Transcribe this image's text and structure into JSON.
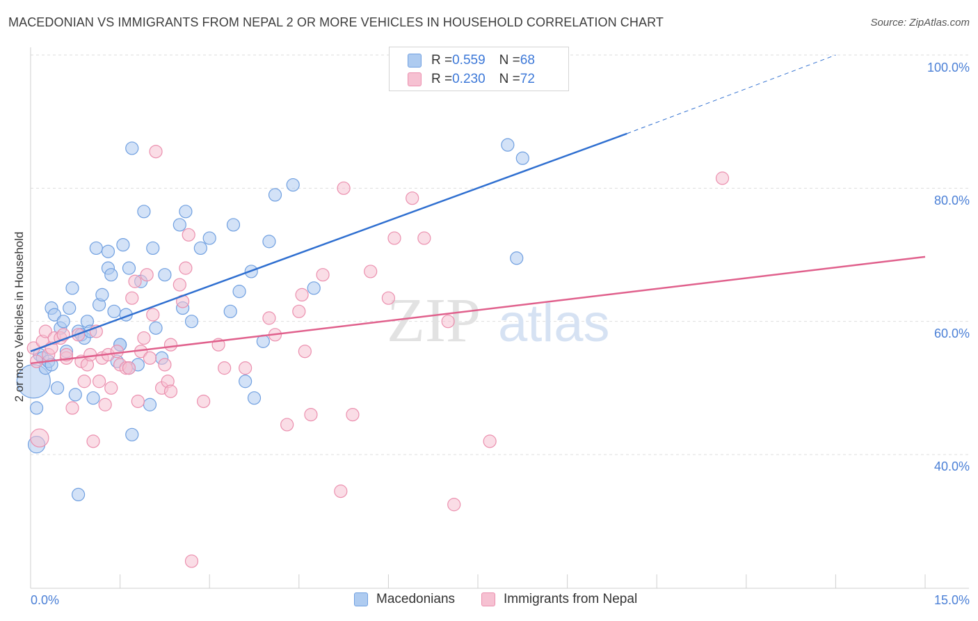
{
  "title": "MACEDONIAN VS IMMIGRANTS FROM NEPAL 2 OR MORE VEHICLES IN HOUSEHOLD CORRELATION CHART",
  "source": "Source: ZipAtlas.com",
  "watermark": {
    "zip": "ZIP",
    "atlas": "atlas"
  },
  "colors": {
    "blue_fill": "#aecbf0",
    "blue_stroke": "#6f9fe0",
    "blue_line": "#2f6fd0",
    "pink_fill": "#f6c1d2",
    "pink_stroke": "#eb8fae",
    "pink_line": "#e0608c",
    "axis_text": "#4a7fd6",
    "grid": "#dddddd"
  },
  "legend_top": [
    {
      "r_label": "R = ",
      "r_value": "0.559",
      "n_label": "N = ",
      "n_value": "68"
    },
    {
      "r_label": "R = ",
      "r_value": "0.230",
      "n_label": "N = ",
      "n_value": "72"
    }
  ],
  "chart_data": {
    "type": "scatter",
    "title": "MACEDONIAN VS IMMIGRANTS FROM NEPAL 2 OR MORE VEHICLES IN HOUSEHOLD CORRELATION CHART",
    "xlabel": "",
    "ylabel": "2 or more Vehicles in Household",
    "x_unit": "%",
    "xlim": [
      0,
      15
    ],
    "ylim": [
      20,
      102
    ],
    "x_tick_labels": [
      "0.0%",
      "15.0%"
    ],
    "y_ticks": [
      40,
      60,
      80,
      100
    ],
    "y_tick_labels": [
      "40.0%",
      "60.0%",
      "80.0%",
      "100.0%"
    ],
    "grid": true,
    "legend_position": "bottom",
    "series": [
      {
        "name": "Macedonians",
        "color": "#6f9fe0",
        "points": [
          [
            0.05,
            51.0
          ],
          [
            0.1,
            47.0
          ],
          [
            0.1,
            41.5
          ],
          [
            0.15,
            55.0
          ],
          [
            0.2,
            54.5
          ],
          [
            0.25,
            53.0
          ],
          [
            0.3,
            54.0
          ],
          [
            0.35,
            62.0
          ],
          [
            0.4,
            61.0
          ],
          [
            0.45,
            50.0
          ],
          [
            0.5,
            59.0
          ],
          [
            0.55,
            60.0
          ],
          [
            0.6,
            55.5
          ],
          [
            0.65,
            62.0
          ],
          [
            0.7,
            65.0
          ],
          [
            0.75,
            49.0
          ],
          [
            0.8,
            58.5
          ],
          [
            0.85,
            58.0
          ],
          [
            0.9,
            57.5
          ],
          [
            0.95,
            60.0
          ],
          [
            1.0,
            58.5
          ],
          [
            1.05,
            48.5
          ],
          [
            1.1,
            71.0
          ],
          [
            1.15,
            62.5
          ],
          [
            1.2,
            64.0
          ],
          [
            1.3,
            68.0
          ],
          [
            1.3,
            70.5
          ],
          [
            1.35,
            67.0
          ],
          [
            1.4,
            61.5
          ],
          [
            1.45,
            54.0
          ],
          [
            1.5,
            56.5
          ],
          [
            1.55,
            71.5
          ],
          [
            1.6,
            61.0
          ],
          [
            1.65,
            68.0
          ],
          [
            1.65,
            53.0
          ],
          [
            1.7,
            43.0
          ],
          [
            1.7,
            86.0
          ],
          [
            1.85,
            66.0
          ],
          [
            1.9,
            76.5
          ],
          [
            2.0,
            47.5
          ],
          [
            2.05,
            71.0
          ],
          [
            2.1,
            59.0
          ],
          [
            2.2,
            54.5
          ],
          [
            2.25,
            67.0
          ],
          [
            2.5,
            74.5
          ],
          [
            2.55,
            62.0
          ],
          [
            2.6,
            76.5
          ],
          [
            2.7,
            60.0
          ],
          [
            2.85,
            71.0
          ],
          [
            3.0,
            72.5
          ],
          [
            3.35,
            61.5
          ],
          [
            3.4,
            74.5
          ],
          [
            3.5,
            64.5
          ],
          [
            3.6,
            51.0
          ],
          [
            3.7,
            67.5
          ],
          [
            3.75,
            48.5
          ],
          [
            3.9,
            57.0
          ],
          [
            4.0,
            72.0
          ],
          [
            4.1,
            79.0
          ],
          [
            4.4,
            80.5
          ],
          [
            4.75,
            65.0
          ],
          [
            0.8,
            34.0
          ],
          [
            1.5,
            56.5
          ],
          [
            1.8,
            53.5
          ],
          [
            8.0,
            86.5
          ],
          [
            8.15,
            69.5
          ],
          [
            8.25,
            84.5
          ],
          [
            0.35,
            53.5
          ]
        ],
        "trendline": {
          "x0": 0.0,
          "y0": 55.5,
          "x1": 10.0,
          "y1": 88.2,
          "dashed_to_x": 13.5,
          "dashed_to_y": 100.0
        }
      },
      {
        "name": "Immigrants from Nepal",
        "color": "#eb8fae",
        "points": [
          [
            0.05,
            56.0
          ],
          [
            0.1,
            54.0
          ],
          [
            0.15,
            42.5
          ],
          [
            0.2,
            57.0
          ],
          [
            0.25,
            58.5
          ],
          [
            0.3,
            55.0
          ],
          [
            0.35,
            56.0
          ],
          [
            0.4,
            57.5
          ],
          [
            0.5,
            57.5
          ],
          [
            0.55,
            58.0
          ],
          [
            0.6,
            54.5
          ],
          [
            0.7,
            47.0
          ],
          [
            0.8,
            58.0
          ],
          [
            0.85,
            54.0
          ],
          [
            0.9,
            51.0
          ],
          [
            0.95,
            53.5
          ],
          [
            1.0,
            55.0
          ],
          [
            1.05,
            42.0
          ],
          [
            1.15,
            51.0
          ],
          [
            1.2,
            54.5
          ],
          [
            1.25,
            47.5
          ],
          [
            1.3,
            55.0
          ],
          [
            1.35,
            50.0
          ],
          [
            1.45,
            55.5
          ],
          [
            1.5,
            53.5
          ],
          [
            1.6,
            53.0
          ],
          [
            1.65,
            53.0
          ],
          [
            1.7,
            63.5
          ],
          [
            1.75,
            66.0
          ],
          [
            1.8,
            48.0
          ],
          [
            1.85,
            55.5
          ],
          [
            1.9,
            57.5
          ],
          [
            1.95,
            67.0
          ],
          [
            2.0,
            54.5
          ],
          [
            2.05,
            61.0
          ],
          [
            2.1,
            85.5
          ],
          [
            2.2,
            50.0
          ],
          [
            2.25,
            53.5
          ],
          [
            2.3,
            51.0
          ],
          [
            2.35,
            56.5
          ],
          [
            2.35,
            49.5
          ],
          [
            2.5,
            65.5
          ],
          [
            2.55,
            63.0
          ],
          [
            2.6,
            68.0
          ],
          [
            2.65,
            73.0
          ],
          [
            2.7,
            24.0
          ],
          [
            2.9,
            48.0
          ],
          [
            3.15,
            56.5
          ],
          [
            3.25,
            53.0
          ],
          [
            3.6,
            53.0
          ],
          [
            4.0,
            60.5
          ],
          [
            4.1,
            58.0
          ],
          [
            4.3,
            44.5
          ],
          [
            4.5,
            61.5
          ],
          [
            4.55,
            64.0
          ],
          [
            4.6,
            55.5
          ],
          [
            4.7,
            46.0
          ],
          [
            4.9,
            67.0
          ],
          [
            5.2,
            34.5
          ],
          [
            5.25,
            80.0
          ],
          [
            5.4,
            46.0
          ],
          [
            5.7,
            67.5
          ],
          [
            6.0,
            63.5
          ],
          [
            6.1,
            72.5
          ],
          [
            6.4,
            78.5
          ],
          [
            6.6,
            72.5
          ],
          [
            7.0,
            60.0
          ],
          [
            7.1,
            32.5
          ],
          [
            7.7,
            42.0
          ],
          [
            11.6,
            81.5
          ],
          [
            0.6,
            55.0
          ],
          [
            1.1,
            58.5
          ]
        ],
        "trendline": {
          "x0": 0.0,
          "y0": 53.7,
          "x1": 15.0,
          "y1": 69.7
        }
      }
    ]
  }
}
